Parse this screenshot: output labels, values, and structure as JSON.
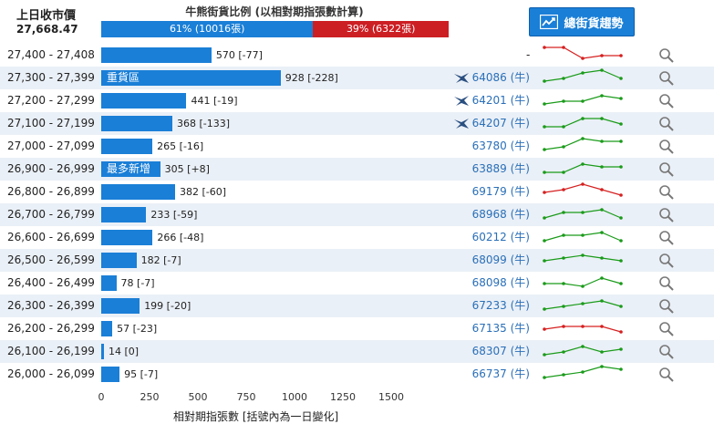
{
  "header": {
    "prev_close_label": "上日收市價",
    "prev_close_value": "27,668.47",
    "ratio_title": "牛熊街貨比例 (以相對期指張數計算)",
    "bull_text": "61% (10016張)",
    "bear_text": "39% (6322張)",
    "bull_pct": 61,
    "trend_button": "總街貨趨勢"
  },
  "colors": {
    "bull": "#1a7fd7",
    "bear": "#cc1f24",
    "up": "#1a9b1a",
    "down": "#d62020"
  },
  "rows": [
    {
      "range": "27,400 - 27,408",
      "value": 570,
      "change": "[-77]",
      "label": "570 [-77]",
      "tag": "",
      "warrant": "",
      "dash": "-",
      "icon": false,
      "spark": [
        6,
        6,
        2,
        3,
        3
      ]
    },
    {
      "range": "27,300 - 27,399",
      "value": 928,
      "change": "[-228]",
      "label": "928 [-228]",
      "tag": "重貨區",
      "warrant": "64086 (牛)",
      "icon": true,
      "spark": [
        2,
        3,
        5,
        6,
        3
      ]
    },
    {
      "range": "27,200 - 27,299",
      "value": 441,
      "change": "[-19]",
      "label": "441 [-19]",
      "tag": "",
      "warrant": "64201 (牛)",
      "icon": true,
      "spark": [
        2,
        3,
        3,
        5,
        4
      ]
    },
    {
      "range": "27,100 - 27,199",
      "value": 368,
      "change": "[-133]",
      "label": "368 [-133]",
      "tag": "",
      "warrant": "64207 (牛)",
      "icon": true,
      "spark": [
        2,
        2,
        5,
        5,
        3
      ]
    },
    {
      "range": "27,000 - 27,099",
      "value": 265,
      "change": "[-16]",
      "label": "265 [-16]",
      "tag": "",
      "warrant": "63780 (牛)",
      "icon": false,
      "spark": [
        2,
        3,
        6,
        5,
        5
      ]
    },
    {
      "range": "26,900 - 26,999",
      "value": 305,
      "change": "[+8]",
      "label": "305 [+8]",
      "tag": "最多新增",
      "warrant": "63889 (牛)",
      "icon": false,
      "spark": [
        2,
        2,
        5,
        4,
        4
      ]
    },
    {
      "range": "26,800 - 26,899",
      "value": 382,
      "change": "[-60]",
      "label": "382 [-60]",
      "tag": "",
      "warrant": "69179 (牛)",
      "icon": false,
      "spark": [
        3,
        4,
        6,
        4,
        2
      ]
    },
    {
      "range": "26,700 - 26,799",
      "value": 233,
      "change": "[-59]",
      "label": "233 [-59]",
      "tag": "",
      "warrant": "68968 (牛)",
      "icon": false,
      "spark": [
        2,
        4,
        4,
        5,
        2
      ]
    },
    {
      "range": "26,600 - 26,699",
      "value": 266,
      "change": "[-48]",
      "label": "266 [-48]",
      "tag": "",
      "warrant": "60212 (牛)",
      "icon": false,
      "spark": [
        2,
        4,
        4,
        5,
        2
      ]
    },
    {
      "range": "26,500 - 26,599",
      "value": 182,
      "change": "[-7]",
      "label": "182 [-7]",
      "tag": "",
      "warrant": "68099 (牛)",
      "icon": false,
      "spark": [
        3,
        4,
        5,
        4,
        3
      ]
    },
    {
      "range": "26,400 - 26,499",
      "value": 78,
      "change": "[-7]",
      "label": "78 [-7]",
      "tag": "",
      "warrant": "68098 (牛)",
      "icon": false,
      "spark": [
        3,
        3,
        2,
        5,
        3
      ]
    },
    {
      "range": "26,300 - 26,399",
      "value": 199,
      "change": "[-20]",
      "label": "199 [-20]",
      "tag": "",
      "warrant": "67233 (牛)",
      "icon": false,
      "spark": [
        2,
        3,
        4,
        5,
        3
      ]
    },
    {
      "range": "26,200 - 26,299",
      "value": 57,
      "change": "[-23]",
      "label": "57 [-23]",
      "tag": "",
      "warrant": "67135 (牛)",
      "icon": false,
      "spark": [
        3,
        4,
        4,
        4,
        2
      ]
    },
    {
      "range": "26,100 - 26,199",
      "value": 14,
      "change": "[0]",
      "label": "14 [0]",
      "tag": "",
      "warrant": "68307 (牛)",
      "icon": false,
      "spark": [
        2,
        3,
        5,
        3,
        4
      ]
    },
    {
      "range": "26,000 - 26,099",
      "value": 95,
      "change": "[-7]",
      "label": "95 [-7]",
      "tag": "",
      "warrant": "66737 (牛)",
      "icon": false,
      "spark": [
        2,
        3,
        4,
        6,
        5
      ]
    }
  ],
  "axis": {
    "ticks": [
      "0",
      "250",
      "500",
      "750",
      "1000",
      "1250",
      "1500"
    ],
    "title": "相對期指張數 [括號內為一日變化]",
    "max": 1500
  }
}
